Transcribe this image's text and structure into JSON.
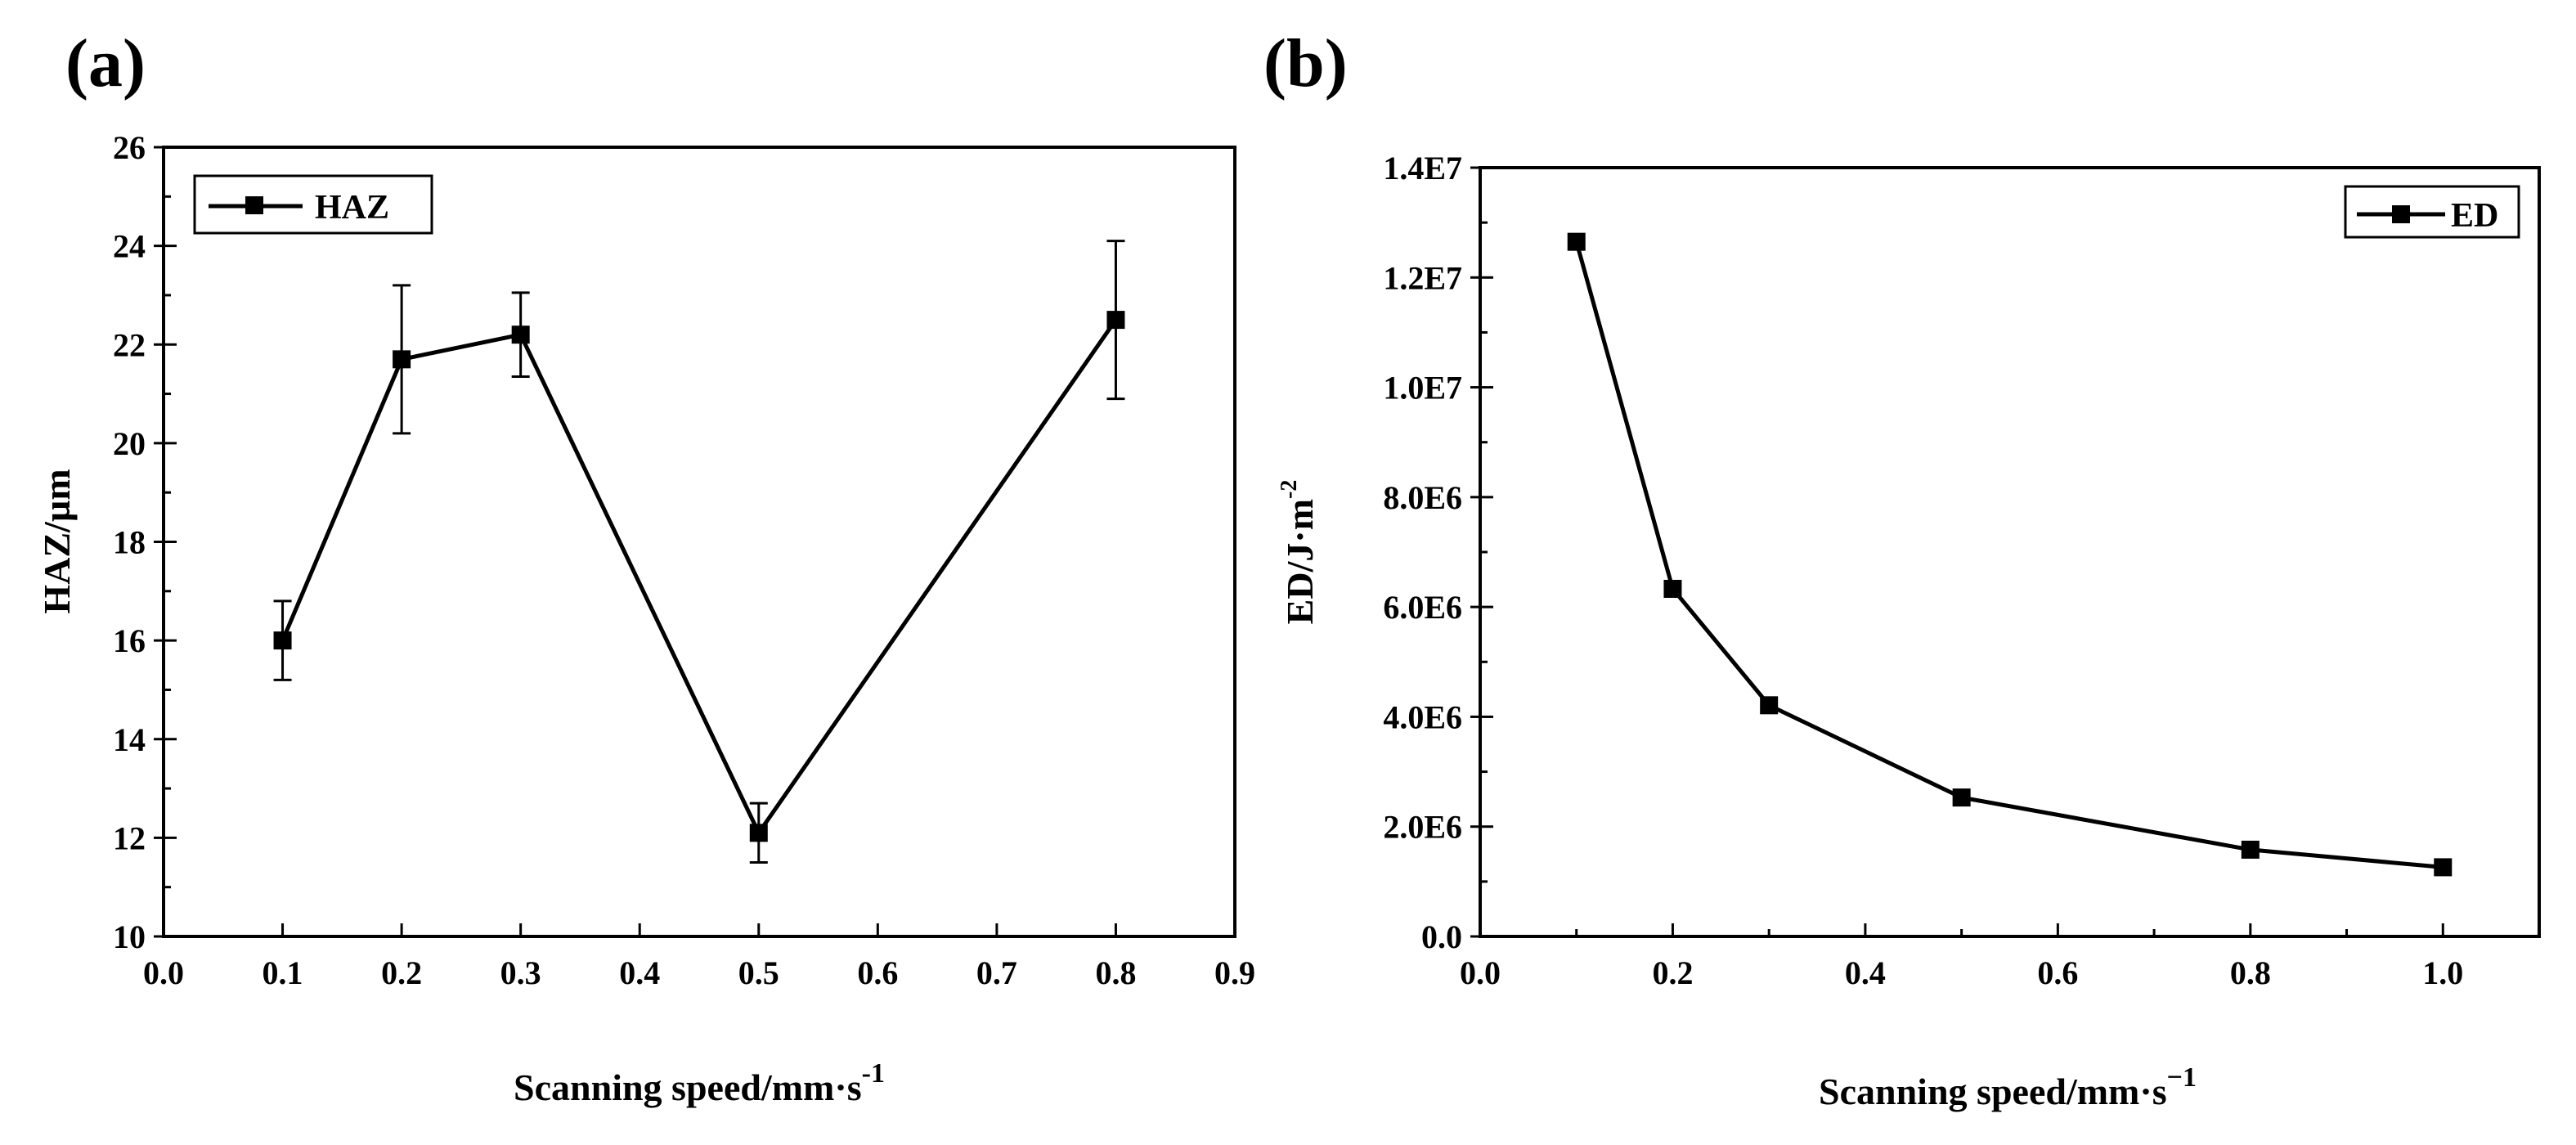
{
  "chart_data": [
    {
      "panel_label": "(a)",
      "type": "line",
      "xlabel": "Scanning speed/mm·s",
      "xlabel_sup": "-1",
      "ylabel": "HAZ/µm",
      "xlim": [
        0.0,
        0.9
      ],
      "ylim": [
        10,
        26
      ],
      "xticks": [
        0.0,
        0.1,
        0.2,
        0.3,
        0.4,
        0.5,
        0.6,
        0.7,
        0.8,
        0.9
      ],
      "yticks": [
        10,
        12,
        14,
        16,
        18,
        20,
        22,
        24,
        26
      ],
      "legend": {
        "label": "HAZ",
        "position": "top-left"
      },
      "grid": false,
      "series": [
        {
          "name": "HAZ",
          "x": [
            0.1,
            0.2,
            0.3,
            0.5,
            0.8
          ],
          "y": [
            16.0,
            21.7,
            22.2,
            12.1,
            22.5
          ],
          "error": [
            0.8,
            1.5,
            0.85,
            0.6,
            1.6
          ]
        }
      ]
    },
    {
      "panel_label": "(b)",
      "type": "line",
      "xlabel": "Scanning speed/mm·s",
      "xlabel_sup": "−1",
      "ylabel": "ED/J·m",
      "ylabel_sup": "-2",
      "xlim": [
        0.0,
        1.1
      ],
      "ylim": [
        0,
        14000000
      ],
      "xticks": [
        0.0,
        0.2,
        0.4,
        0.6,
        0.8,
        1.0
      ],
      "yticks": [
        0,
        2000000,
        4000000,
        6000000,
        8000000,
        10000000,
        12000000,
        14000000
      ],
      "ytick_labels": [
        "0.0",
        "2.0E6",
        "4.0E6",
        "6.0E6",
        "8.0E6",
        "1.0E7",
        "1.2E7",
        "1.4E7"
      ],
      "legend": {
        "label": "ED",
        "position": "top-right"
      },
      "grid": false,
      "series": [
        {
          "name": "ED",
          "x": [
            0.1,
            0.2,
            0.3,
            0.5,
            0.8,
            1.0
          ],
          "y": [
            12650000,
            6330000,
            4210000,
            2530000,
            1580000,
            1260000
          ]
        }
      ]
    }
  ]
}
